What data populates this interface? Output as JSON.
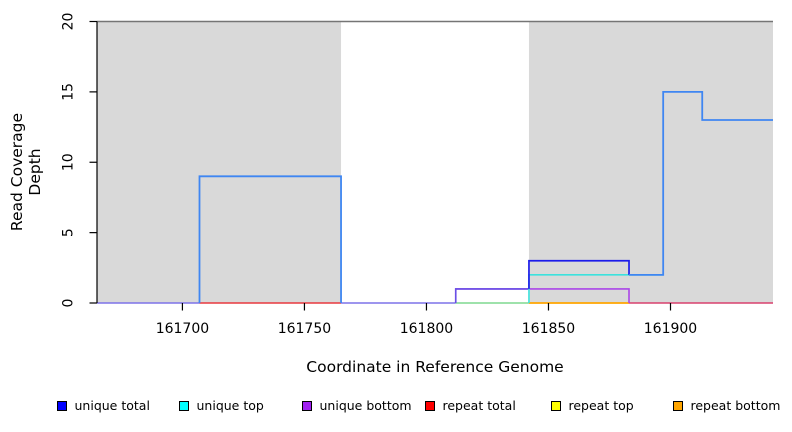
{
  "chart_data": {
    "type": "line",
    "subtype": "step-coverage",
    "title": "",
    "xlabel": "Coordinate in Reference Genome",
    "ylabel": "Read Coverage Depth",
    "xlim": [
      161665,
      161942
    ],
    "ylim": [
      0,
      20
    ],
    "x_ticks": [
      161700,
      161750,
      161800,
      161850,
      161900
    ],
    "y_ticks": [
      0,
      5,
      10,
      15,
      20
    ],
    "grid": false,
    "legend_position": "bottom",
    "colors": {
      "shading": "#d9d9d9",
      "top_boundary": "#757575",
      "axis": "#000000",
      "blend_blue_cyan": "#3f86f2",
      "blend_blue_purple": "#6950e6",
      "blend_cyan_yellow_green": "#7fd98f",
      "blend_red_purple": "#d8406e",
      "blend_blue_purple_baseline": "#7d72e8"
    },
    "shaded_regions": [
      {
        "x_from": 161665,
        "x_to": 161765,
        "color": "#d9d9d9",
        "label": "repeat-region-left"
      },
      {
        "x_from": 161842,
        "x_to": 161942,
        "color": "#d9d9d9",
        "label": "repeat-region-right"
      }
    ],
    "top_boundary_line": {
      "y": 20,
      "color": "#757575"
    },
    "series": [
      {
        "name": "unique total",
        "color": "#0000ff",
        "steps": [
          [
            161665,
            0
          ],
          [
            161707,
            9
          ],
          [
            161765,
            0
          ],
          [
            161812,
            1
          ],
          [
            161842,
            3
          ],
          [
            161883,
            2
          ],
          [
            161897,
            15
          ],
          [
            161913,
            13
          ],
          [
            161942,
            13
          ]
        ]
      },
      {
        "name": "unique top",
        "color": "#00ffff",
        "steps": [
          [
            161665,
            0
          ],
          [
            161707,
            9
          ],
          [
            161765,
            0
          ],
          [
            161842,
            2
          ],
          [
            161897,
            15
          ],
          [
            161913,
            13
          ],
          [
            161942,
            13
          ]
        ]
      },
      {
        "name": "unique bottom",
        "color": "#a020f0",
        "steps": [
          [
            161665,
            0
          ],
          [
            161812,
            1
          ],
          [
            161883,
            0
          ],
          [
            161942,
            0
          ]
        ]
      },
      {
        "name": "repeat total",
        "color": "#ff0000",
        "steps": [
          [
            161665,
            0
          ],
          [
            161942,
            0
          ]
        ]
      },
      {
        "name": "repeat top",
        "color": "#ffff00",
        "steps": [
          [
            161665,
            0
          ],
          [
            161942,
            0
          ]
        ]
      },
      {
        "name": "repeat bottom",
        "color": "#ffa500",
        "steps": [
          [
            161665,
            0
          ],
          [
            161942,
            0
          ]
        ]
      }
    ],
    "rendered_strokes": [
      {
        "color": "#7d72e8",
        "width": 1.6,
        "path": [
          [
            161665,
            0
          ],
          [
            161707,
            0
          ]
        ]
      },
      {
        "color": "#e8393f",
        "width": 1.6,
        "path": [
          [
            161707,
            0
          ],
          [
            161765,
            0
          ]
        ]
      },
      {
        "color": "#7d72e8",
        "width": 1.6,
        "path": [
          [
            161765,
            0
          ],
          [
            161812,
            0
          ]
        ]
      },
      {
        "color": "#7fd98f",
        "width": 1.6,
        "path": [
          [
            161812,
            0
          ],
          [
            161842,
            0
          ]
        ]
      },
      {
        "color": "#ffa500",
        "width": 1.7,
        "path": [
          [
            161842,
            0
          ],
          [
            161883,
            0
          ]
        ]
      },
      {
        "color": "#d8406e",
        "width": 1.6,
        "path": [
          [
            161883,
            0
          ],
          [
            161942,
            0
          ]
        ]
      },
      {
        "color": "#ab46e8",
        "width": 1.6,
        "path": [
          [
            161812,
            0
          ],
          [
            161812,
            1
          ],
          [
            161883,
            1
          ],
          [
            161883,
            0
          ]
        ]
      },
      {
        "color": "#6950e6",
        "width": 1.6,
        "path": [
          [
            161812,
            0
          ],
          [
            161812,
            1
          ],
          [
            161842,
            1
          ]
        ]
      },
      {
        "color": "#3ce2dd",
        "width": 1.6,
        "path": [
          [
            161842,
            0
          ],
          [
            161842,
            2
          ],
          [
            161897,
            2
          ]
        ]
      },
      {
        "color": "#3f86f2",
        "width": 1.8,
        "path": [
          [
            161707,
            0
          ],
          [
            161707,
            9
          ],
          [
            161765,
            9
          ],
          [
            161765,
            0
          ]
        ]
      },
      {
        "color": "#1c1cea",
        "width": 1.7,
        "path": [
          [
            161842,
            1
          ],
          [
            161842,
            3
          ],
          [
            161883,
            3
          ],
          [
            161883,
            2
          ]
        ]
      },
      {
        "color": "#3f86f2",
        "width": 1.8,
        "path": [
          [
            161883,
            2
          ],
          [
            161897,
            2
          ],
          [
            161897,
            15
          ],
          [
            161913,
            15
          ],
          [
            161913,
            13
          ],
          [
            161942,
            13
          ]
        ]
      }
    ],
    "legend": {
      "items": [
        {
          "label": "unique total",
          "color": "#0000ff"
        },
        {
          "label": "unique top",
          "color": "#00ffff"
        },
        {
          "label": "unique bottom",
          "color": "#a020f0"
        },
        {
          "label": "repeat total",
          "color": "#ff0000"
        },
        {
          "label": "repeat top",
          "color": "#ffff00"
        },
        {
          "label": "repeat bottom",
          "color": "#ffa500"
        }
      ]
    }
  }
}
